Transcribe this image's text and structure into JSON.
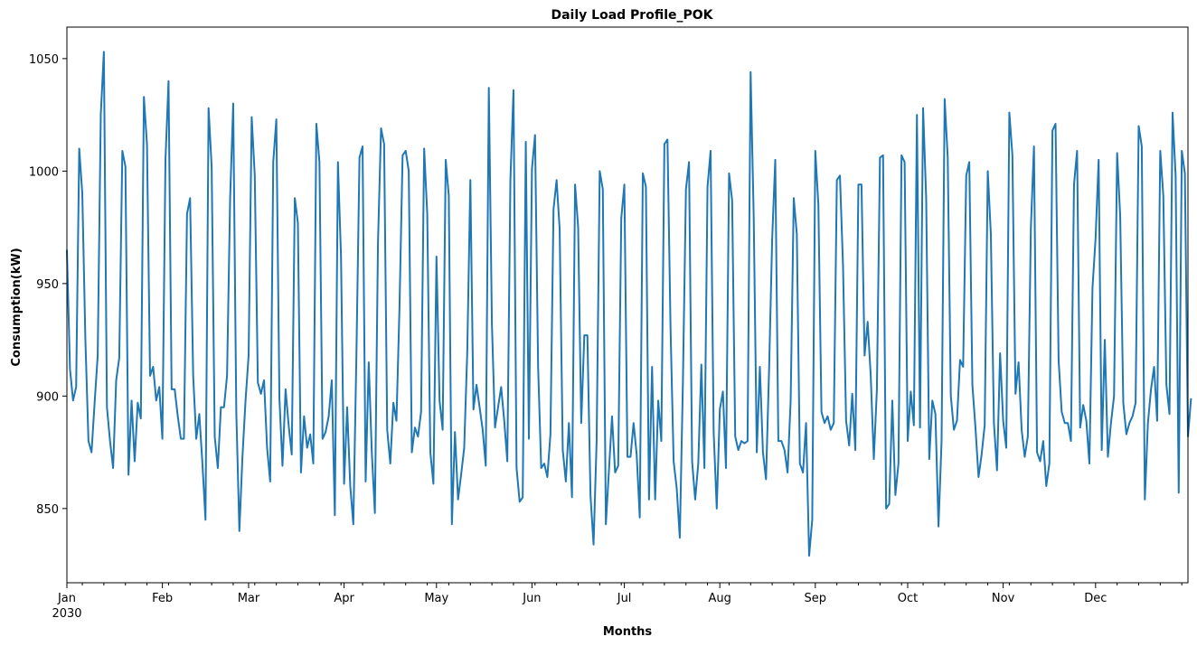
{
  "chart_data": {
    "type": "line",
    "title": "Daily Load Profile_POK",
    "xlabel": "Months",
    "ylabel": "Consumption(kW)",
    "x_start": "2030-01-01",
    "x_end": "2030-12-31",
    "xlim": [
      "2030-01-01",
      "2030-12-31"
    ],
    "ylim": [
      817,
      1064
    ],
    "x_ticks": [
      {
        "date": "2030-01-01",
        "label": "Jan",
        "sublabel": "2030"
      },
      {
        "date": "2030-02-01",
        "label": "Feb"
      },
      {
        "date": "2030-03-01",
        "label": "Mar"
      },
      {
        "date": "2030-04-01",
        "label": "Apr"
      },
      {
        "date": "2030-05-01",
        "label": "May"
      },
      {
        "date": "2030-06-01",
        "label": "Jun"
      },
      {
        "date": "2030-07-01",
        "label": "Jul"
      },
      {
        "date": "2030-08-01",
        "label": "Aug"
      },
      {
        "date": "2030-09-01",
        "label": "Sep"
      },
      {
        "date": "2030-10-01",
        "label": "Oct"
      },
      {
        "date": "2030-11-01",
        "label": "Nov"
      },
      {
        "date": "2030-12-01",
        "label": "Dec"
      }
    ],
    "y_ticks": [
      850,
      900,
      950,
      1000,
      1050
    ],
    "grid": false,
    "legend": "none",
    "color": "#1f77b4",
    "series": [
      {
        "values": [
          965,
          912,
          898,
          904,
          1010,
          990,
          925,
          880,
          875,
          897,
          918,
          1025,
          1053,
          895,
          880,
          868,
          907,
          917,
          1009,
          1002,
          865,
          898,
          871,
          897,
          890,
          1033,
          1012,
          909,
          913,
          898,
          904,
          881,
          1005,
          1040,
          903,
          903,
          891,
          881,
          881,
          981,
          988,
          909,
          881,
          892,
          870,
          845,
          1028,
          1002,
          882,
          868,
          895,
          895,
          909,
          988,
          1030,
          893,
          840,
          873,
          898,
          918,
          1024,
          998,
          906,
          901,
          907,
          877,
          862,
          1004,
          1023,
          899,
          869,
          903,
          887,
          874,
          988,
          977,
          866,
          891,
          877,
          883,
          870,
          1021,
          1004,
          881,
          884,
          891,
          907,
          847,
          1004,
          962,
          861,
          895,
          860,
          843,
          918,
          1006,
          1011,
          862,
          915,
          875,
          848,
          968,
          1019,
          1012,
          885,
          870,
          897,
          889,
          940,
          1007,
          1009,
          1000,
          875,
          886,
          882,
          893,
          1010,
          981,
          875,
          861,
          962,
          898,
          885,
          1005,
          989,
          843,
          884,
          854,
          865,
          877,
          920,
          996,
          894,
          905,
          895,
          885,
          869,
          1037,
          932,
          886,
          895,
          904,
          889,
          871,
          996,
          1036,
          868,
          853,
          855,
          1013,
          881,
          1001,
          1016,
          913,
          868,
          870,
          864,
          883,
          983,
          996,
          974,
          876,
          862,
          888,
          855,
          994,
          975,
          888,
          927,
          927,
          856,
          834,
          880,
          1000,
          992,
          843,
          867,
          891,
          866,
          869,
          979,
          994,
          873,
          873,
          888,
          874,
          846,
          999,
          993,
          854,
          913,
          854,
          898,
          880,
          1012,
          1014,
          930,
          871,
          859,
          837,
          905,
          992,
          1004,
          871,
          854,
          870,
          914,
          868,
          993,
          1009,
          884,
          850,
          894,
          902,
          868,
          999,
          987,
          882,
          876,
          880,
          879,
          880,
          1044,
          980,
          875,
          913,
          875,
          863,
          912,
          970,
          1005,
          880,
          880,
          876,
          866,
          898,
          988,
          972,
          870,
          866,
          888,
          829,
          845,
          1009,
          985,
          893,
          888,
          891,
          885,
          888,
          996,
          998,
          958,
          889,
          878,
          901,
          876,
          994,
          994,
          918,
          933,
          909,
          872,
          903,
          1006,
          1007,
          850,
          852,
          898,
          856,
          870,
          1007,
          1004,
          880,
          902,
          887,
          1025,
          886,
          1028,
          988,
          872,
          898,
          892,
          842,
          880,
          1032,
          1006,
          900,
          885,
          889,
          916,
          913,
          998,
          1004,
          905,
          886,
          864,
          874,
          887,
          1000,
          972,
          888,
          867,
          919,
          889,
          877,
          1026,
          1007,
          901,
          915,
          885,
          873,
          882,
          975,
          1011,
          875,
          871,
          880,
          860,
          870,
          1018,
          1021,
          916,
          893,
          888,
          888,
          880,
          994,
          1009,
          886,
          896,
          889,
          870,
          948,
          970,
          1005,
          876,
          925,
          873,
          888,
          900,
          1008,
          980,
          897,
          883,
          888,
          891,
          897,
          1020,
          1011,
          854,
          888,
          903,
          913,
          889,
          1009,
          989,
          905,
          892,
          1026,
          998,
          857,
          1009,
          999,
          882,
          899
        ]
      }
    ]
  }
}
